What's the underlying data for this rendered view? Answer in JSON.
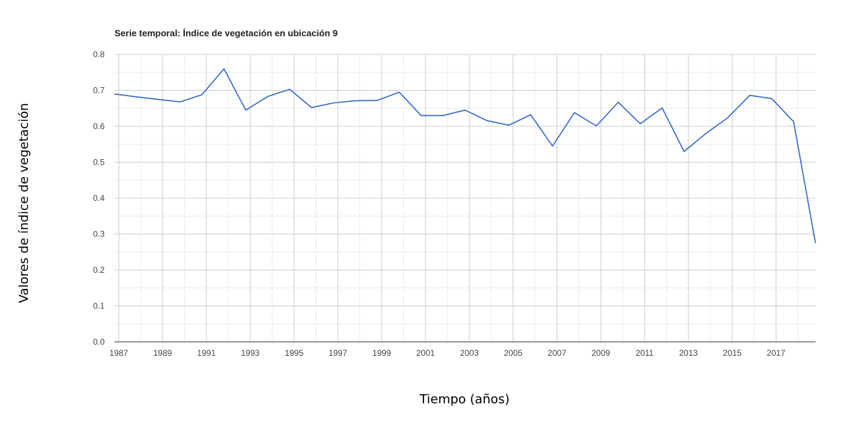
{
  "chart_data": {
    "type": "line",
    "title": "Serie temporal: Índice de vegetación en ubicación 9",
    "xlabel": "Tiempo (años)",
    "ylabel": "Valores de índice de vegetación",
    "x_tick_labels": [
      "1987",
      "1989",
      "1991",
      "1993",
      "1995",
      "1997",
      "1999",
      "2001",
      "2003",
      "2005",
      "2007",
      "2009",
      "2011",
      "2013",
      "2015",
      "2017"
    ],
    "y_tick_labels": [
      "0.0",
      "0.1",
      "0.2",
      "0.3",
      "0.4",
      "0.5",
      "0.6",
      "0.7",
      "0.8"
    ],
    "ylim": [
      0,
      0.8
    ],
    "xlim": [
      1986.8,
      2018.8
    ],
    "grid": true,
    "series": [
      {
        "color": "#3366cc",
        "x": [
          1986.8,
          1987.8,
          1988.8,
          1989.8,
          1990.8,
          1991.8,
          1992.8,
          1993.8,
          1994.8,
          1995.8,
          1996.8,
          1997.8,
          1998.8,
          1999.8,
          2000.8,
          2001.8,
          2002.8,
          2003.8,
          2004.8,
          2005.8,
          2006.8,
          2007.8,
          2008.8,
          2009.8,
          2010.8,
          2011.8,
          2012.8,
          2013.8,
          2014.8,
          2015.8,
          2016.8,
          2017.8,
          2018.8
        ],
        "values": [
          0.69,
          0.682,
          0.675,
          0.668,
          0.688,
          0.76,
          0.645,
          0.683,
          0.703,
          0.652,
          0.665,
          0.671,
          0.672,
          0.695,
          0.63,
          0.63,
          0.645,
          0.616,
          0.603,
          0.632,
          0.545,
          0.638,
          0.601,
          0.667,
          0.607,
          0.651,
          0.53,
          0.58,
          0.624,
          0.686,
          0.677,
          0.613,
          0.275
        ]
      }
    ]
  }
}
